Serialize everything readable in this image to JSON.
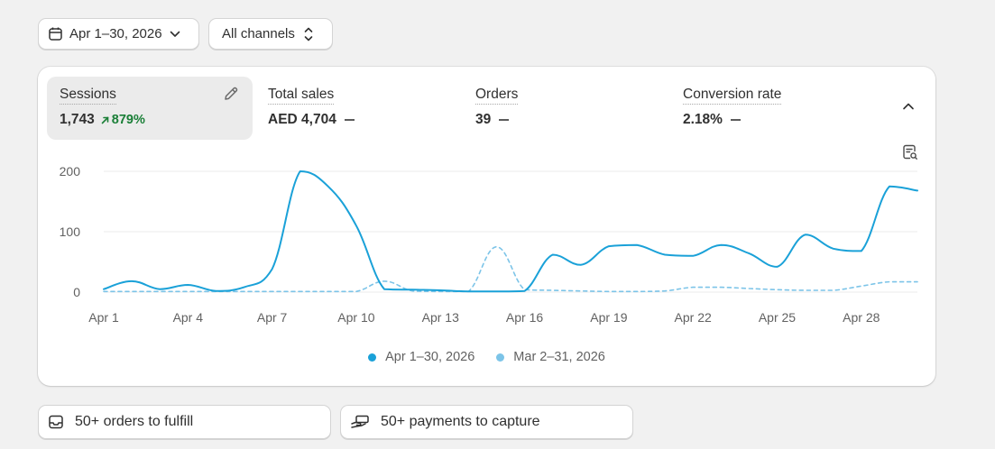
{
  "filters": {
    "date_label": "Apr 1–30, 2026",
    "channel_label": "All channels"
  },
  "metrics": [
    {
      "label": "Sessions",
      "value": "1,743",
      "delta": "879%",
      "active": true
    },
    {
      "label": "Total sales",
      "value": "AED 4,704"
    },
    {
      "label": "Orders",
      "value": "39"
    },
    {
      "label": "Conversion rate",
      "value": "2.18%"
    }
  ],
  "chart_data": {
    "type": "line",
    "ylim": [
      0,
      200
    ],
    "yticks": [
      "0",
      "100",
      "200"
    ],
    "xticks": [
      "Apr 1",
      "Apr 4",
      "Apr 7",
      "Apr 10",
      "Apr 13",
      "Apr 16",
      "Apr 19",
      "Apr 22",
      "Apr 25",
      "Apr 28"
    ],
    "x": [
      1,
      2,
      3,
      4,
      5,
      6,
      7,
      8,
      9,
      10,
      11,
      12,
      13,
      14,
      15,
      16,
      17,
      18,
      19,
      20,
      21,
      22,
      23,
      24,
      25,
      26,
      27,
      28,
      29,
      30
    ],
    "series": [
      {
        "name": "Apr 1–30, 2026",
        "style": "solid",
        "color": "#1aa1d8",
        "values": [
          5,
          18,
          5,
          12,
          2,
          8,
          38,
          200,
          175,
          110,
          5,
          4,
          3,
          1,
          1,
          2,
          62,
          45,
          76,
          78,
          62,
          60,
          78,
          64,
          42,
          95,
          72,
          68,
          175,
          168
        ]
      },
      {
        "name": "Mar 2–31, 2026",
        "style": "dashed",
        "color": "#7cc4e8",
        "values": [
          1,
          1,
          1,
          1,
          1,
          1,
          1,
          1,
          1,
          1,
          18,
          2,
          1,
          1,
          75,
          4,
          3,
          2,
          1,
          1,
          2,
          8,
          8,
          6,
          4,
          3,
          3,
          10,
          17,
          17
        ]
      }
    ]
  },
  "legend": [
    {
      "label": "Apr 1–30, 2026",
      "color": "#1aa1d8"
    },
    {
      "label": "Mar 2–31, 2026",
      "color": "#7cc4e8"
    }
  ],
  "tasks": {
    "fulfill_label": "50+ orders to fulfill",
    "capture_label": "50+ payments to capture"
  },
  "icons": {
    "date": "calendar-icon",
    "date_chevron": "chevron-down-icon",
    "channel_chevron": "select-arrows-icon",
    "edit": "pencil-icon",
    "collapse": "chevron-up-icon",
    "report": "report-search-icon",
    "fulfill": "inbox-icon",
    "capture": "hand-cash-icon"
  }
}
